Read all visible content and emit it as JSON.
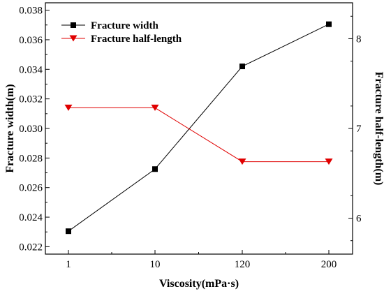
{
  "chart_data": {
    "type": "line",
    "categories": [
      "1",
      "10",
      "120",
      "200"
    ],
    "xlabel": "Viscosity(mPa·s)",
    "ylabel_left": "Fracture width(m)",
    "ylabel_right": "Fracture half-length(m)",
    "ylim_left": [
      0.0215,
      0.0385
    ],
    "ylim_right": [
      5.6,
      8.4
    ],
    "yticks_left": [
      "0.022",
      "0.024",
      "0.026",
      "0.028",
      "0.030",
      "0.032",
      "0.034",
      "0.036",
      "0.038"
    ],
    "yticks_right": [
      "6",
      "7",
      "8"
    ],
    "grid": false,
    "legend_position": "top-left",
    "series": [
      {
        "name": "Fracture width",
        "axis": "left",
        "marker": "square",
        "color": "#000000",
        "values": [
          0.02305,
          0.02725,
          0.0342,
          0.03705
        ]
      },
      {
        "name": "Fracture half-length",
        "axis": "right",
        "marker": "triangle-down",
        "color": "#e00000",
        "values": [
          7.23,
          7.23,
          6.63,
          6.63
        ]
      }
    ]
  }
}
